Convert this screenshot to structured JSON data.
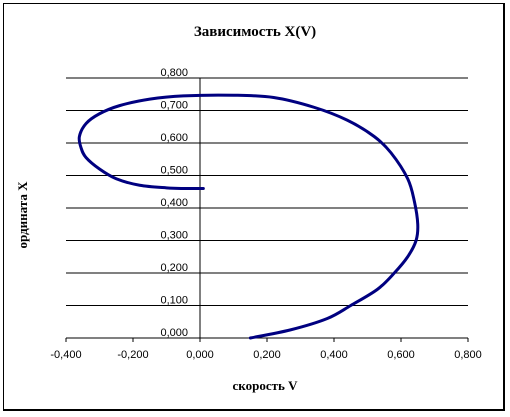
{
  "chart_data": {
    "type": "line",
    "title": "Зависимость X(V)",
    "xlabel": "скорость V",
    "ylabel": "ордината X",
    "xlim": [
      -0.4,
      0.8
    ],
    "ylim": [
      0.0,
      0.8
    ],
    "x_ticks": [
      "-0,400",
      "-0,200",
      "0,000",
      "0,200",
      "0,400",
      "0,600",
      "0,800"
    ],
    "y_ticks": [
      "0,000",
      "0,100",
      "0,200",
      "0,300",
      "0,400",
      "0,500",
      "0,600",
      "0,700",
      "0,800"
    ],
    "grid": {
      "horizontal": true,
      "vertical": false
    },
    "legend": "none",
    "line_color": "#000080",
    "series": [
      {
        "points": [
          [
            0.15,
            0.0
          ],
          [
            0.27,
            0.025
          ],
          [
            0.38,
            0.06
          ],
          [
            0.45,
            0.1
          ],
          [
            0.53,
            0.15
          ],
          [
            0.58,
            0.2
          ],
          [
            0.62,
            0.25
          ],
          [
            0.645,
            0.3
          ],
          [
            0.65,
            0.35
          ],
          [
            0.64,
            0.42
          ],
          [
            0.62,
            0.49
          ],
          [
            0.57,
            0.57
          ],
          [
            0.52,
            0.62
          ],
          [
            0.44,
            0.67
          ],
          [
            0.34,
            0.71
          ],
          [
            0.22,
            0.74
          ],
          [
            0.1,
            0.747
          ],
          [
            -0.05,
            0.745
          ],
          [
            -0.15,
            0.735
          ],
          [
            -0.24,
            0.715
          ],
          [
            -0.3,
            0.69
          ],
          [
            -0.34,
            0.66
          ],
          [
            -0.36,
            0.62
          ],
          [
            -0.355,
            0.585
          ],
          [
            -0.34,
            0.555
          ],
          [
            -0.3,
            0.52
          ],
          [
            -0.25,
            0.49
          ],
          [
            -0.18,
            0.47
          ],
          [
            -0.1,
            0.462
          ],
          [
            -0.05,
            0.46
          ],
          [
            0.01,
            0.46
          ]
        ]
      }
    ]
  }
}
